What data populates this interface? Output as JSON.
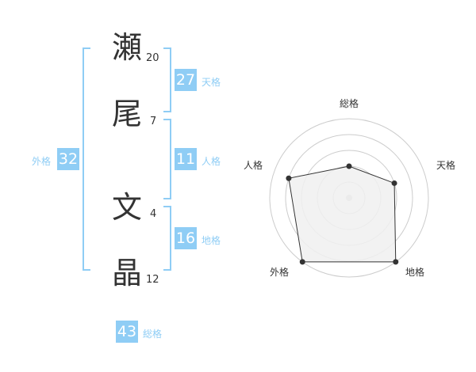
{
  "name": {
    "chars": [
      {
        "char": "瀬",
        "strokes": "20"
      },
      {
        "char": "尾",
        "strokes": "7"
      },
      {
        "char": "文",
        "strokes": "4"
      },
      {
        "char": "晶",
        "strokes": "12"
      }
    ]
  },
  "kaku": {
    "tenkaku": {
      "label": "天格",
      "value": "27"
    },
    "jinkaku": {
      "label": "人格",
      "value": "11"
    },
    "chikaku": {
      "label": "地格",
      "value": "16"
    },
    "gaikaku": {
      "label": "外格",
      "value": "32"
    },
    "soukaku": {
      "label": "総格",
      "value": "43"
    }
  },
  "chart_data": {
    "type": "radar",
    "axes": [
      "総格",
      "天格",
      "地格",
      "外格",
      "人格"
    ],
    "values": [
      2,
      3,
      5,
      5,
      4
    ],
    "range": [
      0,
      5
    ],
    "rings": 5,
    "colors": {
      "fill": "#f0f0f0",
      "line": "#333333",
      "ring": "#cccccc",
      "accent": "#8fcdf5"
    }
  }
}
